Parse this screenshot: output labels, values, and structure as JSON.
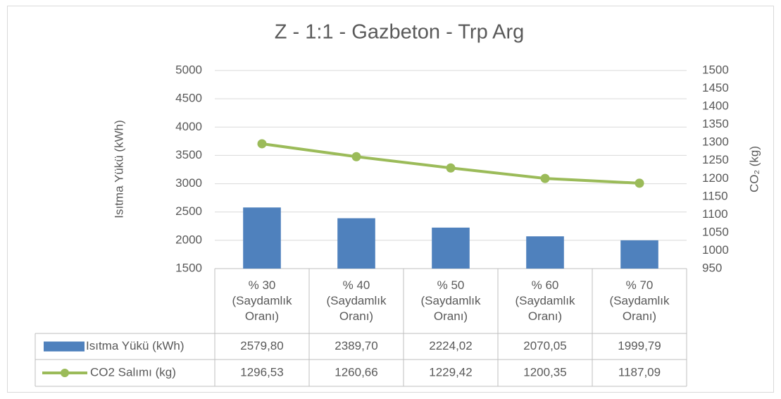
{
  "chart_data": {
    "type": "bar_line",
    "title": "Z - 1:1 - Gazbeton - Trp Arg",
    "y_label": "Isıtma Yükü (kWh)",
    "y2_label": "CO₂ (kg)",
    "categories": [
      "% 30 (Saydamlık Oranı)",
      "% 40 (Saydamlık Oranı)",
      "% 50 (Saydamlık Oranı)",
      "% 60 (Saydamlık Oranı)",
      "% 70 (Saydamlık Oranı)"
    ],
    "series": [
      {
        "name": "Isıtma Yükü (kWh)",
        "type": "bar",
        "color": "#4f81bd",
        "values": [
          2579.8,
          2389.7,
          2224.02,
          2070.05,
          1999.79
        ],
        "value_labels": [
          "2579,80",
          "2389,70",
          "2224,02",
          "2070,05",
          "1999,79"
        ]
      },
      {
        "name": "CO2 Salımı (kg)",
        "type": "line",
        "axis": "y2",
        "color": "#9bbb59",
        "values": [
          1296.53,
          1260.66,
          1229.42,
          1200.35,
          1187.09
        ],
        "value_labels": [
          "1296,53",
          "1260,66",
          "1229,42",
          "1200,35",
          "1187,09"
        ]
      }
    ],
    "ylim": [
      1500,
      5000
    ],
    "yticks": [
      1500,
      2000,
      2500,
      3000,
      3500,
      4000,
      4500,
      5000
    ],
    "y2lim": [
      950,
      1500
    ],
    "y2ticks": [
      950,
      1000,
      1050,
      1100,
      1150,
      1200,
      1250,
      1300,
      1350,
      1400,
      1450,
      1500
    ],
    "grid": true
  }
}
